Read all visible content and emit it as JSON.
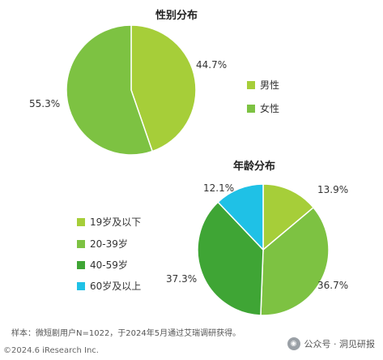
{
  "chart_data": [
    {
      "type": "pie",
      "title": "性别分布",
      "categories": [
        "男性",
        "女性"
      ],
      "values": [
        44.7,
        55.3
      ],
      "value_labels": [
        "44.7%",
        "55.3%"
      ],
      "colors": [
        "#a6ce39",
        "#7dc242"
      ],
      "legend": "right"
    },
    {
      "type": "pie",
      "title": "年龄分布",
      "categories": [
        "19岁及以下",
        "20-39岁",
        "40-59岁",
        "60岁及以上"
      ],
      "values": [
        13.9,
        36.7,
        37.3,
        12.1
      ],
      "value_labels": [
        "13.9%",
        "36.7%",
        "37.3%",
        "12.1%"
      ],
      "colors": [
        "#a6ce39",
        "#7dc242",
        "#3fa535",
        "#1fc1e6"
      ],
      "legend": "left"
    }
  ],
  "footnote": "样本：微短剧用户N=1022，于2024年5月通过艾瑞调研获得。",
  "copyright": "©2024.6 iResearch Inc.",
  "watermark": "公众号 · 洞见研报",
  "watermark_icon": "wechat-icon"
}
